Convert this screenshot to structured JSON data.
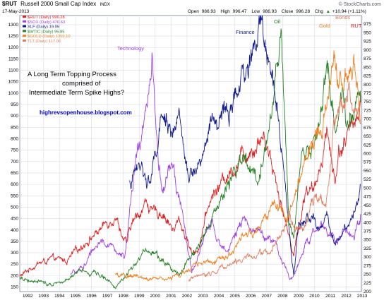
{
  "header": {
    "symbol": "$RUT",
    "name": "Russell 2000 Small Cap Index",
    "exchange": "INDX",
    "date": "17-May-2013",
    "open_label": "Open",
    "open": "986.93",
    "high_label": "High",
    "high": "996.47",
    "low_label": "Low",
    "low": "986.93",
    "close_label": "Close",
    "close": "996.28",
    "chg_label": "Chg",
    "chg": "+10.94 (+1.11%)",
    "chg_arrow": "▲",
    "brand": "© StockCharts.com"
  },
  "legend": [
    {
      "label": "$RUT (Daily) 996.28",
      "color": "#e02020"
    },
    {
      "label": "$SOX (Daily) 470.63",
      "color": "#a040e0"
    },
    {
      "label": "XLF (Daily) 19.95",
      "color": "#101a90"
    },
    {
      "label": "$WTIC (Daily) 95.85",
      "color": "#208020"
    },
    {
      "label": "$GOLD (Daily) 1359.10",
      "color": "#f08020"
    },
    {
      "label": "TLT (Daily) 117.06",
      "color": "#e08060"
    }
  ],
  "annotations": {
    "main_line1": "A Long Term Topping Process",
    "main_line2": "comprised of",
    "main_line3": "Intermediate Term Spike Highs?",
    "url": "highrevsopenhouse.blogspot.com",
    "technology": "Technology",
    "finance": "Finance",
    "oil": "Oil",
    "gold": "Gold",
    "bonds": "Bonds",
    "rut": "RUT"
  },
  "colors": {
    "rut": "#e02020",
    "sox": "#a040e0",
    "xlf": "#101a90",
    "wtic": "#208020",
    "gold": "#f08020",
    "tlt": "#e08060",
    "grid": "#d8dce8",
    "annotation_blue": "#0000cc"
  },
  "chart_data": {
    "type": "line",
    "x_range": [
      1992.0,
      2013.45
    ],
    "xticks": [
      1992,
      1993,
      1994,
      1995,
      1996,
      1997,
      1998,
      1999,
      2000,
      2001,
      2002,
      2003,
      2004,
      2005,
      2006,
      2007,
      2008,
      2009,
      2010,
      2011,
      2012,
      2013
    ],
    "left_ylim": [
      130,
      1340
    ],
    "left_yticks": [
      150,
      200,
      250,
      300,
      350,
      400,
      450,
      500,
      550,
      600,
      650,
      700,
      750,
      800,
      850,
      900,
      950,
      1000,
      1050,
      1100,
      1150,
      1200,
      1250,
      1300
    ],
    "right_ylim": [
      200,
      1000
    ],
    "right_yticks": [
      200,
      225,
      250,
      275,
      300,
      325,
      350,
      375,
      400,
      425,
      450,
      475,
      500,
      525,
      550,
      575,
      600,
      625,
      650,
      675,
      700,
      725,
      750,
      775,
      800,
      825,
      850,
      875,
      900,
      925,
      950,
      975
    ],
    "grid": true,
    "legend_position": "top-left",
    "series": [
      {
        "name": "$RUT (Daily) 996.28",
        "key": "rut",
        "color": "#e02020",
        "points": [
          [
            1992.0,
            195
          ],
          [
            1993.0,
            250
          ],
          [
            1994.0,
            270
          ],
          [
            1995.0,
            265
          ],
          [
            1996.0,
            340
          ],
          [
            1997.0,
            400
          ],
          [
            1998.0,
            470
          ],
          [
            1998.7,
            330
          ],
          [
            1999.0,
            420
          ],
          [
            2000.0,
            530
          ],
          [
            2000.3,
            470
          ],
          [
            2001.0,
            480
          ],
          [
            2001.7,
            390
          ],
          [
            2002.0,
            450
          ],
          [
            2002.8,
            300
          ],
          [
            2003.2,
            320
          ],
          [
            2004.0,
            540
          ],
          [
            2005.0,
            640
          ],
          [
            2006.0,
            730
          ],
          [
            2007.4,
            820
          ],
          [
            2008.0,
            650
          ],
          [
            2008.9,
            370
          ],
          [
            2009.2,
            300
          ],
          [
            2010.0,
            590
          ],
          [
            2010.5,
            560
          ],
          [
            2011.3,
            850
          ],
          [
            2011.8,
            600
          ],
          [
            2012.0,
            750
          ],
          [
            2012.5,
            790
          ],
          [
            2013.0,
            880
          ],
          [
            2013.4,
            990
          ]
        ]
      },
      {
        "name": "$SOX (Daily) 470.63",
        "key": "sox",
        "color": "#a040e0",
        "points": [
          [
            1995.2,
            200
          ],
          [
            1996.0,
            240
          ],
          [
            1997.0,
            360
          ],
          [
            1997.9,
            320
          ],
          [
            1998.6,
            280
          ],
          [
            1999.3,
            700
          ],
          [
            2000.0,
            930
          ],
          [
            2000.3,
            1190
          ],
          [
            2000.7,
            700
          ],
          [
            2001.0,
            550
          ],
          [
            2001.5,
            700
          ],
          [
            2002.0,
            550
          ],
          [
            2002.8,
            210
          ],
          [
            2003.0,
            250
          ],
          [
            2004.0,
            440
          ],
          [
            2004.6,
            320
          ],
          [
            2005.0,
            330
          ],
          [
            2006.0,
            430
          ],
          [
            2007.0,
            400
          ],
          [
            2008.0,
            340
          ],
          [
            2008.9,
            190
          ],
          [
            2009.2,
            200
          ],
          [
            2010.0,
            350
          ],
          [
            2011.0,
            420
          ],
          [
            2011.8,
            360
          ],
          [
            2012.3,
            390
          ],
          [
            2013.0,
            390
          ],
          [
            2013.4,
            470
          ]
        ]
      },
      {
        "name": "XLF (Daily) 19.95",
        "key": "xlf",
        "color": "#101a90",
        "points": [
          [
            1998.9,
            600
          ],
          [
            1999.5,
            690
          ],
          [
            2000.2,
            610
          ],
          [
            2001.0,
            890
          ],
          [
            2001.5,
            850
          ],
          [
            2002.0,
            860
          ],
          [
            2002.6,
            620
          ],
          [
            2003.0,
            660
          ],
          [
            2004.0,
            850
          ],
          [
            2005.0,
            900
          ],
          [
            2006.0,
            1040
          ],
          [
            2007.2,
            1300
          ],
          [
            2007.5,
            1200
          ],
          [
            2008.0,
            1000
          ],
          [
            2008.5,
            750
          ],
          [
            2009.0,
            330
          ],
          [
            2009.2,
            200
          ],
          [
            2009.5,
            420
          ],
          [
            2010.3,
            460
          ],
          [
            2010.7,
            400
          ],
          [
            2011.3,
            460
          ],
          [
            2011.8,
            340
          ],
          [
            2012.5,
            420
          ],
          [
            2013.0,
            490
          ],
          [
            2013.4,
            600
          ]
        ]
      },
      {
        "name": "$WTIC (Daily) 95.85",
        "key": "wtic",
        "color": "#208020",
        "points": [
          [
            1992.0,
            190
          ],
          [
            1993.0,
            180
          ],
          [
            1994.0,
            165
          ],
          [
            1995.0,
            190
          ],
          [
            1996.0,
            220
          ],
          [
            1997.0,
            210
          ],
          [
            1998.0,
            150
          ],
          [
            1999.0,
            230
          ],
          [
            2000.0,
            320
          ],
          [
            2001.0,
            270
          ],
          [
            2002.0,
            210
          ],
          [
            2003.0,
            310
          ],
          [
            2004.0,
            420
          ],
          [
            2005.0,
            600
          ],
          [
            2006.0,
            700
          ],
          [
            2007.0,
            620
          ],
          [
            2007.8,
            900
          ],
          [
            2008.4,
            1300
          ],
          [
            2008.9,
            410
          ],
          [
            2009.2,
            370
          ],
          [
            2009.7,
            730
          ],
          [
            2010.5,
            780
          ],
          [
            2011.3,
            1100
          ],
          [
            2011.8,
            850
          ],
          [
            2012.3,
            1000
          ],
          [
            2012.6,
            870
          ],
          [
            2013.0,
            920
          ],
          [
            2013.4,
            960
          ]
        ]
      },
      {
        "name": "$GOLD (Daily) 1359.10",
        "key": "gold",
        "color": "#f08020",
        "points": [
          [
            1998.0,
            200
          ],
          [
            1999.0,
            195
          ],
          [
            2000.0,
            190
          ],
          [
            2001.0,
            180
          ],
          [
            2002.0,
            200
          ],
          [
            2003.0,
            240
          ],
          [
            2004.0,
            270
          ],
          [
            2005.0,
            290
          ],
          [
            2006.0,
            360
          ],
          [
            2007.0,
            400
          ],
          [
            2008.0,
            500
          ],
          [
            2008.8,
            440
          ],
          [
            2009.5,
            600
          ],
          [
            2010.3,
            780
          ],
          [
            2011.0,
            870
          ],
          [
            2011.7,
            1150
          ],
          [
            2012.0,
            1050
          ],
          [
            2012.5,
            1100
          ],
          [
            2013.0,
            1080
          ],
          [
            2013.4,
            870
          ]
        ]
      },
      {
        "name": "TLT (Daily) 117.06",
        "key": "tlt",
        "color": "#e08060",
        "points": [
          [
            2002.6,
            180
          ],
          [
            2003.5,
            200
          ],
          [
            2004.5,
            230
          ],
          [
            2005.5,
            260
          ],
          [
            2006.5,
            280
          ],
          [
            2007.5,
            300
          ],
          [
            2008.0,
            340
          ],
          [
            2008.9,
            460
          ],
          [
            2009.3,
            380
          ],
          [
            2010.0,
            450
          ],
          [
            2010.7,
            560
          ],
          [
            2011.2,
            520
          ],
          [
            2011.7,
            800
          ],
          [
            2012.0,
            900
          ],
          [
            2012.6,
            1050
          ],
          [
            2013.0,
            950
          ],
          [
            2013.4,
            880
          ]
        ]
      }
    ]
  }
}
